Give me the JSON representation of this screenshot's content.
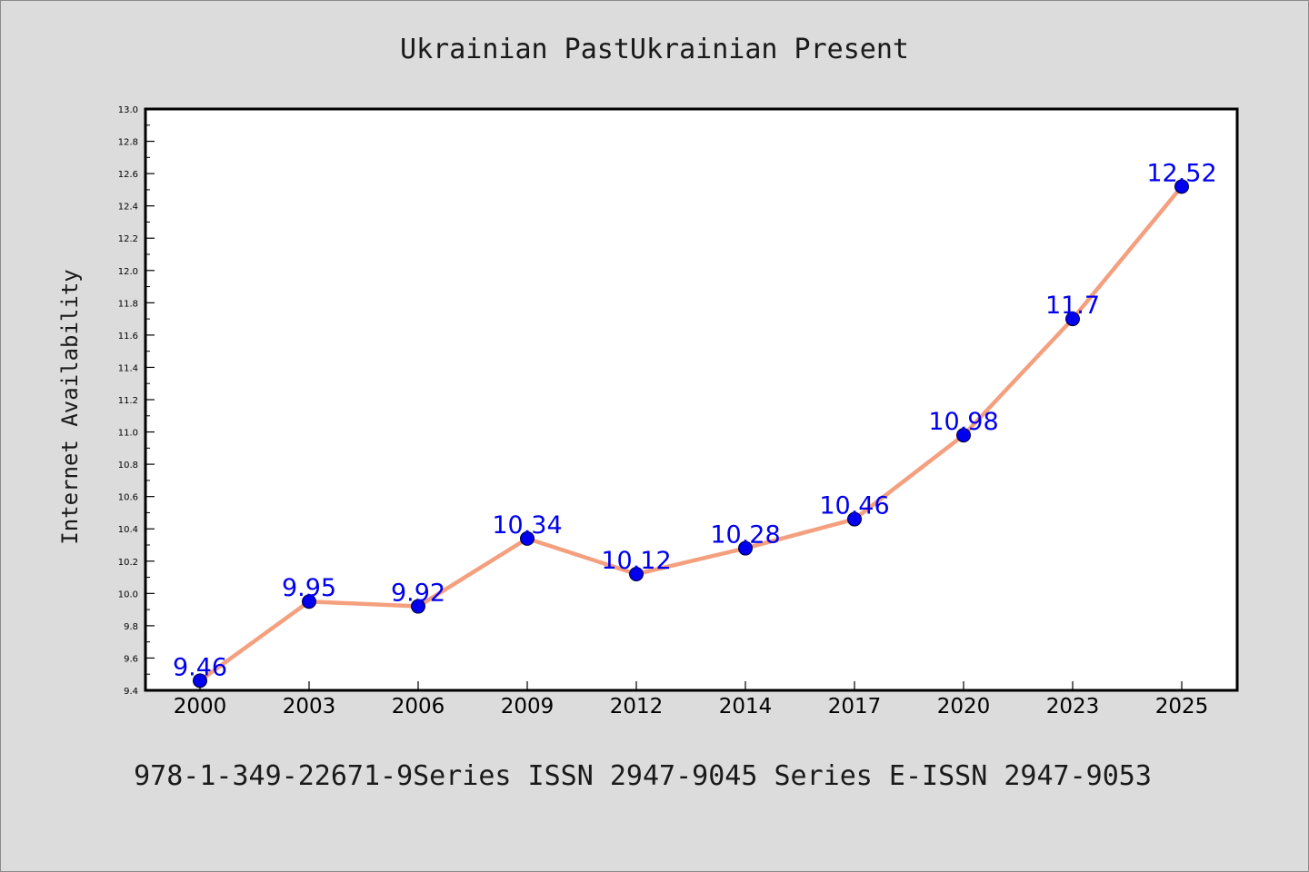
{
  "chart_data": {
    "type": "line",
    "title": "Ukrainian PastUkrainian Present",
    "ylabel": "Internet Availability",
    "xlabel": "",
    "caption": "978-1-349-22671-9Series ISSN 2947-9045 Series E-ISSN 2947-9053",
    "categories": [
      "2000",
      "2003",
      "2006",
      "2009",
      "2012",
      "2014",
      "2017",
      "2020",
      "2023",
      "2025"
    ],
    "series": [
      {
        "values": [
          9.46,
          9.95,
          9.92,
          10.34,
          10.12,
          10.28,
          10.46,
          10.98,
          11.7,
          12.52
        ]
      }
    ],
    "data_labels": [
      "9.46",
      "9.95",
      "9.92",
      "10.34",
      "10.12",
      "10.28",
      "10.46",
      "10.98",
      "11.7",
      "12.52"
    ],
    "ylim": [
      9.4,
      13.0
    ],
    "yticks": [
      "9.4",
      "9.6",
      "9.8",
      "10.0",
      "10.2",
      "10.4",
      "10.6",
      "10.8",
      "11.0",
      "11.2",
      "11.4",
      "11.6",
      "11.8",
      "12.0",
      "12.2",
      "12.4",
      "12.6",
      "12.8",
      "13.0"
    ],
    "grid": false,
    "colors": {
      "line": "#f4a07f",
      "marker": "#0000ee",
      "label": "#0000ee",
      "background": "#dcdcdc",
      "plot": "#ffffff"
    }
  }
}
